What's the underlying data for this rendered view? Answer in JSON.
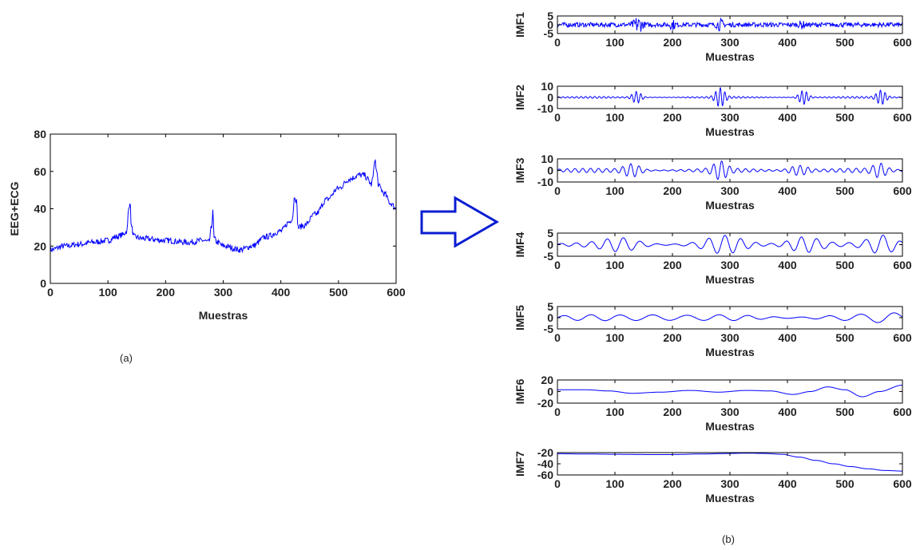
{
  "colors": {
    "signal": "#0000ff",
    "axis": "#000000",
    "arrow": "#0a1ed2"
  },
  "captions": {
    "a": "(a)",
    "b": "(b)"
  },
  "chart_data": [
    {
      "id": "a",
      "type": "line",
      "xlabel": "Muestras",
      "ylabel": "EEG+ECG",
      "xlim": [
        0,
        600
      ],
      "ylim": [
        0,
        80
      ],
      "xticks": [
        0,
        100,
        200,
        300,
        400,
        500,
        600
      ],
      "yticks": [
        0,
        20,
        40,
        60,
        80
      ],
      "x": [
        0,
        25,
        50,
        75,
        100,
        115,
        125,
        133,
        136,
        138,
        141,
        145,
        160,
        200,
        240,
        265,
        275,
        280,
        282,
        284,
        290,
        300,
        330,
        350,
        375,
        400,
        415,
        420,
        424,
        427,
        430,
        440,
        460,
        480,
        500,
        520,
        535,
        545,
        550,
        557,
        560,
        563,
        566,
        570,
        580,
        590,
        600
      ],
      "y": [
        18,
        20,
        21,
        22,
        23,
        25,
        26,
        28,
        40,
        44,
        30,
        25,
        24,
        23,
        22,
        23,
        22,
        30,
        40,
        24,
        22,
        20,
        18,
        20,
        25,
        28,
        33,
        35,
        47,
        44,
        30,
        31,
        37,
        45,
        51,
        56,
        58,
        58,
        56,
        53,
        57,
        67,
        60,
        52,
        48,
        43,
        40
      ],
      "noise": 1.6
    },
    {
      "id": "IMF1",
      "type": "line",
      "xlabel": "Muestras",
      "ylabel": "IMF1",
      "xlim": [
        0,
        600
      ],
      "ylim": [
        -5,
        5
      ],
      "xticks": [
        0,
        100,
        200,
        300,
        400,
        500,
        600
      ],
      "yticks": [
        5,
        0,
        -5
      ],
      "shape": "noise",
      "amplitude": 1.3,
      "bursts": [
        {
          "x": 140,
          "w": 8,
          "a": 4
        },
        {
          "x": 200,
          "w": 5,
          "a": 2
        },
        {
          "x": 283,
          "w": 6,
          "a": 2.5
        },
        {
          "x": 425,
          "w": 5,
          "a": 1.5
        }
      ]
    },
    {
      "id": "IMF2",
      "type": "line",
      "xlabel": "Muestras",
      "ylabel": "IMF2",
      "xlim": [
        0,
        600
      ],
      "ylim": [
        -10,
        10
      ],
      "xticks": [
        0,
        100,
        200,
        300,
        400,
        500,
        600
      ],
      "yticks": [
        10,
        0,
        -10
      ],
      "shape": "oscillation",
      "base_amplitude": 0.8,
      "period": 8,
      "bursts": [
        {
          "x": 138,
          "w": 10,
          "a": 5
        },
        {
          "x": 283,
          "w": 10,
          "a": 8
        },
        {
          "x": 428,
          "w": 10,
          "a": 6
        },
        {
          "x": 563,
          "w": 10,
          "a": 6
        }
      ]
    },
    {
      "id": "IMF3",
      "type": "line",
      "xlabel": "Muestras",
      "ylabel": "IMF3",
      "xlim": [
        0,
        600
      ],
      "ylim": [
        -10,
        10
      ],
      "xticks": [
        0,
        100,
        200,
        300,
        400,
        500,
        600
      ],
      "yticks": [
        10,
        0,
        -10
      ],
      "shape": "oscillation",
      "base_amplitude": 1.8,
      "period": 14,
      "bursts": [
        {
          "x": 130,
          "w": 18,
          "a": 5
        },
        {
          "x": 283,
          "w": 15,
          "a": 6.5
        },
        {
          "x": 420,
          "w": 20,
          "a": 4
        },
        {
          "x": 560,
          "w": 14,
          "a": 5
        }
      ]
    },
    {
      "id": "IMF4",
      "type": "line",
      "xlabel": "Muestras",
      "ylabel": "IMF4",
      "xlim": [
        0,
        600
      ],
      "ylim": [
        -5,
        5
      ],
      "xticks": [
        0,
        100,
        200,
        300,
        400,
        500,
        600
      ],
      "yticks": [
        5,
        0,
        -5
      ],
      "shape": "oscillation",
      "base_amplitude": 0.8,
      "period": 28,
      "bursts": [
        {
          "x": 110,
          "w": 40,
          "a": 2.5
        },
        {
          "x": 290,
          "w": 40,
          "a": 3.2
        },
        {
          "x": 430,
          "w": 35,
          "a": 3.2
        },
        {
          "x": 565,
          "w": 30,
          "a": 3.5
        }
      ]
    },
    {
      "id": "IMF5",
      "type": "line",
      "xlabel": "Muestras",
      "ylabel": "IMF5",
      "xlim": [
        0,
        600
      ],
      "ylim": [
        -5,
        5
      ],
      "xticks": [
        0,
        100,
        200,
        300,
        400,
        500,
        600
      ],
      "yticks": [
        5,
        0,
        -5
      ],
      "shape": "oscillation",
      "base_amplitude": 1.3,
      "period": 52,
      "bursts": [
        {
          "x": 170,
          "w": 60,
          "a": 1.0
        },
        {
          "x": 580,
          "w": 40,
          "a": 1.5
        }
      ]
    },
    {
      "id": "IMF6",
      "type": "line",
      "xlabel": "Muestras",
      "ylabel": "IMF6",
      "xlim": [
        0,
        600
      ],
      "ylim": [
        -20,
        20
      ],
      "xticks": [
        0,
        100,
        200,
        300,
        400,
        500,
        600
      ],
      "yticks": [
        20,
        0,
        -20
      ],
      "x": [
        0,
        50,
        90,
        130,
        180,
        230,
        280,
        330,
        370,
        410,
        440,
        470,
        500,
        530,
        560,
        600
      ],
      "y": [
        3,
        3,
        1,
        -3,
        -1,
        2,
        -1,
        2,
        1,
        -5,
        0,
        8,
        3,
        -9,
        0,
        11
      ]
    },
    {
      "id": "IMF7",
      "type": "line",
      "xlabel": "Muestras",
      "ylabel": "IMF7",
      "xlim": [
        0,
        600
      ],
      "ylim": [
        -60,
        -20
      ],
      "xticks": [
        0,
        100,
        200,
        300,
        400,
        500,
        600
      ],
      "yticks": [
        -20,
        -40,
        -60
      ],
      "x": [
        0,
        50,
        100,
        150,
        200,
        250,
        300,
        330,
        360,
        390,
        420,
        450,
        480,
        510,
        540,
        570,
        600
      ],
      "y": [
        -22,
        -22.5,
        -23,
        -23.5,
        -23.5,
        -22.5,
        -21.5,
        -21,
        -21.5,
        -23,
        -28,
        -34,
        -40,
        -45,
        -49,
        -52,
        -53
      ]
    }
  ]
}
